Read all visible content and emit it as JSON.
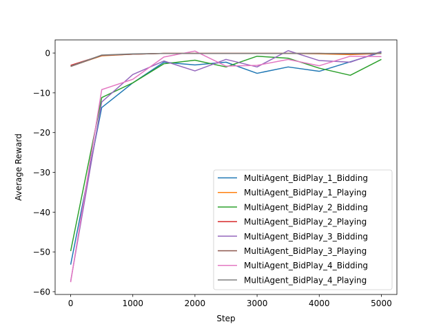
{
  "chart_data": {
    "type": "line",
    "title": "",
    "xlabel": "Step",
    "ylabel": "Average Reward",
    "xlim": [
      -250,
      5250
    ],
    "ylim": [
      -60.7,
      3.3
    ],
    "xticks": [
      0,
      1000,
      2000,
      3000,
      4000,
      5000
    ],
    "yticks": [
      0,
      -10,
      -20,
      -30,
      -40,
      -50,
      -60
    ],
    "xtick_labels": [
      "0",
      "1000",
      "2000",
      "3000",
      "4000",
      "5000"
    ],
    "ytick_labels": [
      "0",
      "−10",
      "−20",
      "−30",
      "−40",
      "−50",
      "−60"
    ],
    "grid": false,
    "legend_position": "lower-right",
    "x": [
      0,
      500,
      1000,
      1500,
      2000,
      2500,
      3000,
      3500,
      4000,
      4500,
      5000
    ],
    "series": [
      {
        "name": "MultiAgent_BidPlay_1_Bidding",
        "color": "#1f77b4",
        "values": [
          -53.2,
          -13.7,
          -7.5,
          -2.3,
          -3.0,
          -2.3,
          -5.1,
          -3.5,
          -4.6,
          -2.2,
          0.2
        ]
      },
      {
        "name": "MultiAgent_BidPlay_1_Playing",
        "color": "#ff7f0e",
        "values": [
          -3.3,
          -0.7,
          -0.3,
          -0.1,
          -0.1,
          -0.1,
          -0.1,
          -0.1,
          -0.2,
          -0.4,
          -0.1
        ]
      },
      {
        "name": "MultiAgent_BidPlay_2_Bidding",
        "color": "#2ca02c",
        "values": [
          -49.8,
          -11.2,
          -7.5,
          -2.7,
          -1.8,
          -3.5,
          -0.8,
          -1.3,
          -3.8,
          -5.6,
          -1.6
        ]
      },
      {
        "name": "MultiAgent_BidPlay_2_Playing",
        "color": "#d62728",
        "values": [
          -3.1,
          -0.6,
          -0.3,
          -0.1,
          -0.1,
          -0.1,
          -0.1,
          -0.1,
          -0.1,
          -0.2,
          -0.1
        ]
      },
      {
        "name": "MultiAgent_BidPlay_3_Bidding",
        "color": "#9467bd",
        "values": [
          -57.4,
          -12.3,
          -5.4,
          -2.0,
          -4.5,
          -1.6,
          -3.5,
          0.6,
          -1.9,
          -2.3,
          0.4
        ]
      },
      {
        "name": "MultiAgent_BidPlay_3_Playing",
        "color": "#8c564b",
        "values": [
          -3.4,
          -0.6,
          -0.3,
          -0.1,
          -0.1,
          -0.1,
          -0.1,
          -0.1,
          -0.1,
          -0.2,
          -0.1
        ]
      },
      {
        "name": "MultiAgent_BidPlay_4_Bidding",
        "color": "#e377c2",
        "values": [
          -57.6,
          -9.2,
          -6.6,
          -1.0,
          0.5,
          -3.3,
          -3.1,
          -1.6,
          -3.2,
          -0.8,
          -0.9
        ]
      },
      {
        "name": "MultiAgent_BidPlay_4_Playing",
        "color": "#7f7f7f",
        "values": [
          -3.3,
          -0.5,
          -0.2,
          -0.1,
          -0.1,
          -0.1,
          -0.1,
          -0.1,
          -0.1,
          -0.1,
          0.0
        ]
      }
    ]
  }
}
